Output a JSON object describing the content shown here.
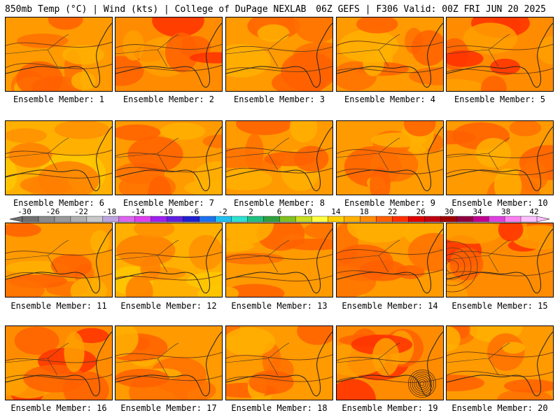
{
  "header": {
    "left": "850mb Temp (°C) | Wind (kts) | College of DuPage NEXLAB",
    "right": "06Z GEFS | F306 Valid: 00Z FRI JUN 20 2025"
  },
  "colorbar": {
    "labels": [
      "-30",
      "-26",
      "-22",
      "-18",
      "-14",
      "-10",
      "-6",
      "-2",
      "2",
      "6",
      "10",
      "14",
      "18",
      "22",
      "26",
      "30",
      "34",
      "38",
      "42"
    ],
    "colors": [
      "#707070",
      "#8a8a8a",
      "#9a9a9a",
      "#b0b0b0",
      "#c9c9c9",
      "#bca5e0",
      "#dd66ee",
      "#e040f0",
      "#a020f0",
      "#6020e0",
      "#2020d0",
      "#1e70f0",
      "#20c0f0",
      "#30e0d0",
      "#20c080",
      "#30a040",
      "#80c020",
      "#c8e020",
      "#ffff40",
      "#ffd000",
      "#ffb000",
      "#ff8c00",
      "#ff6000",
      "#ff3000",
      "#e00000",
      "#c00010",
      "#a00000",
      "#900040",
      "#c00090",
      "#e040e0",
      "#ff80f0",
      "#ffc0ff"
    ]
  },
  "members": [
    {
      "label": "Ensemble Member: 1",
      "tone": "warm"
    },
    {
      "label": "Ensemble Member: 2",
      "tone": "hot"
    },
    {
      "label": "Ensemble Member: 3",
      "tone": "warm"
    },
    {
      "label": "Ensemble Member: 4",
      "tone": "warm"
    },
    {
      "label": "Ensemble Member: 5",
      "tone": "hot"
    },
    {
      "label": "Ensemble Member: 6",
      "tone": "mild"
    },
    {
      "label": "Ensemble Member: 7",
      "tone": "warm"
    },
    {
      "label": "Ensemble Member: 8",
      "tone": "warm"
    },
    {
      "label": "Ensemble Member: 9",
      "tone": "warm"
    },
    {
      "label": "Ensemble Member: 10",
      "tone": "warm"
    },
    {
      "label": "Ensemble Member: 11",
      "tone": "warm"
    },
    {
      "label": "Ensemble Member: 12",
      "tone": "mild"
    },
    {
      "label": "Ensemble Member: 13",
      "tone": "warm"
    },
    {
      "label": "Ensemble Member: 14",
      "tone": "warm"
    },
    {
      "label": "Ensemble Member: 15",
      "tone": "hot"
    },
    {
      "label": "Ensemble Member: 16",
      "tone": "hot"
    },
    {
      "label": "Ensemble Member: 17",
      "tone": "warm"
    },
    {
      "label": "Ensemble Member: 18",
      "tone": "warm"
    },
    {
      "label": "Ensemble Member: 19",
      "tone": "hot"
    },
    {
      "label": "Ensemble Member: 20",
      "tone": "warm"
    }
  ]
}
